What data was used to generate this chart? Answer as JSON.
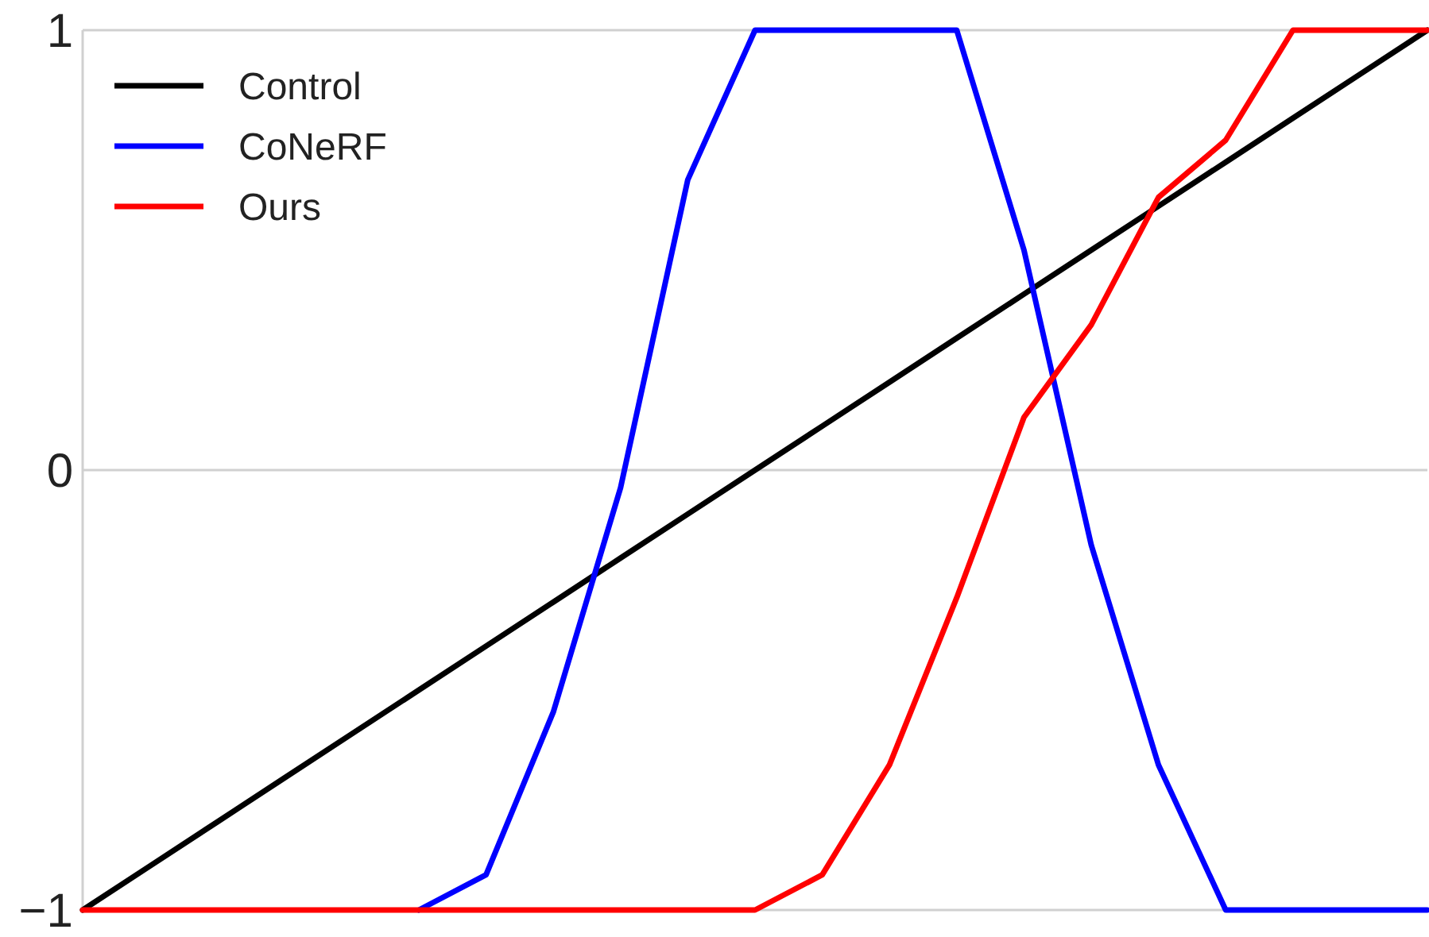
{
  "chart_data": {
    "type": "line",
    "categories": [
      null,
      null,
      null,
      null,
      null,
      null,
      null,
      null,
      null,
      null,
      null,
      null,
      null,
      null,
      null,
      null,
      null,
      null,
      null,
      null,
      null
    ],
    "series": [
      {
        "name": "Control",
        "color": "#000000",
        "values": [
          -1,
          -0.9,
          -0.8,
          -0.7,
          -0.6,
          -0.5,
          -0.4,
          -0.3,
          -0.2,
          -0.1,
          0,
          0.1,
          0.2,
          0.3,
          0.4,
          0.5,
          0.6,
          0.7,
          0.8,
          0.9,
          1
        ]
      },
      {
        "name": "CoNeRF",
        "color": "#0000ff",
        "values": [
          null,
          null,
          null,
          null,
          null,
          -1,
          -0.92,
          -0.55,
          -0.04,
          0.66,
          1,
          1,
          1,
          1,
          0.5,
          -0.17,
          -0.67,
          -1,
          -1,
          -1,
          -1
        ]
      },
      {
        "name": "Ours",
        "color": "#ff0000",
        "values": [
          -1,
          -1,
          -1,
          -1,
          -1,
          -1,
          -1,
          -1,
          -1,
          -1,
          -1,
          -0.92,
          -0.67,
          -0.29,
          0.12,
          0.33,
          0.62,
          0.75,
          1,
          1,
          1
        ]
      }
    ],
    "ylim": [
      -1,
      1
    ],
    "yticks": [
      {
        "value": -1,
        "label": "−1"
      },
      0,
      1
    ],
    "grid": "y",
    "legend": "top left",
    "tick_labels": "y",
    "line_style": "solid",
    "marker": "none"
  }
}
